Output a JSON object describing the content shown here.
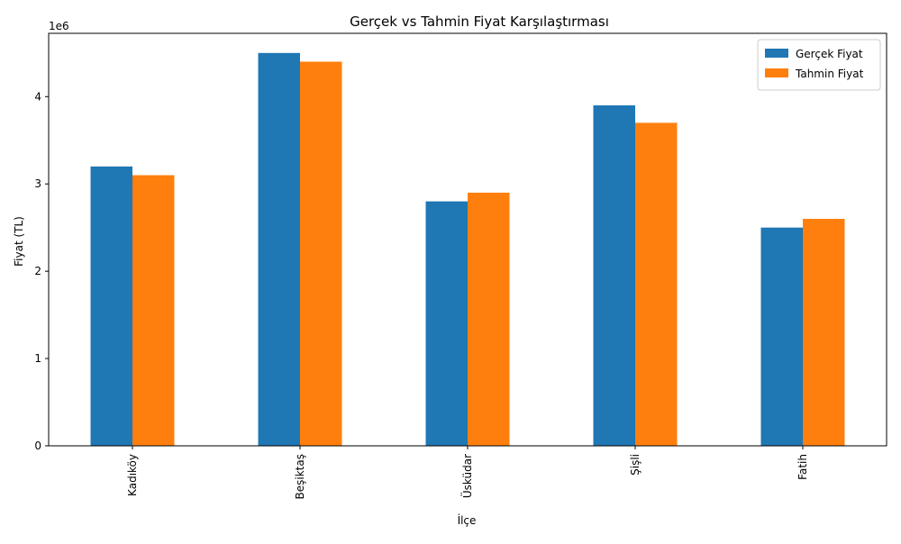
{
  "chart_data": {
    "type": "bar",
    "title": "Gerçek vs Tahmin Fiyat Karşılaştırması",
    "xlabel": "İlçe",
    "ylabel": "Fiyat (TL)",
    "y_offset_label": "1e6",
    "categories": [
      "Kadıköy",
      "Beşiktaş",
      "Üsküdar",
      "Şişli",
      "Fatih"
    ],
    "series": [
      {
        "name": "Gerçek Fiyat",
        "color": "#1f77b4",
        "values": [
          3200000,
          4500000,
          2800000,
          3900000,
          2500000
        ]
      },
      {
        "name": "Tahmin Fiyat",
        "color": "#ff7f0e",
        "values": [
          3100000,
          4400000,
          2900000,
          3700000,
          2600000
        ]
      }
    ],
    "ylim": [
      0,
      4725000
    ],
    "yticks": [
      0,
      1000000,
      2000000,
      3000000,
      4000000
    ],
    "ytick_labels": [
      "0",
      "1",
      "2",
      "3",
      "4"
    ],
    "grid": false,
    "legend_position": "top-right"
  }
}
